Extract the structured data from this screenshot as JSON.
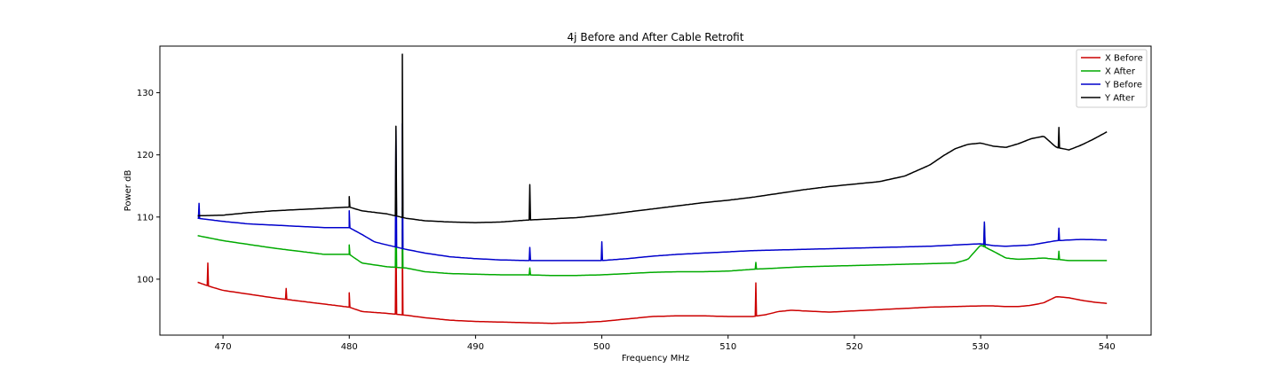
{
  "chart_data": {
    "type": "line",
    "title": "4j Before and After Cable Retrofit",
    "xlabel": "Frequency MHz",
    "ylabel": "Power dB",
    "xlim": [
      465,
      543.5
    ],
    "ylim": [
      91,
      137.5
    ],
    "xticks": [
      470,
      480,
      490,
      500,
      510,
      520,
      530,
      540
    ],
    "yticks": [
      100,
      110,
      120,
      130
    ],
    "grid": false,
    "legend_position": "top-right",
    "series": [
      {
        "name": "X Before",
        "color": "#cc0000",
        "x": [
          468,
          469,
          470,
          472,
          474,
          476,
          478,
          480,
          481,
          483,
          484.5,
          486,
          488,
          490,
          492,
          494,
          496,
          498,
          500,
          502,
          504,
          506,
          508,
          510,
          512,
          513,
          514,
          515,
          516,
          517,
          518,
          520,
          522,
          524,
          526,
          528,
          530,
          531,
          532,
          533,
          534,
          535,
          536,
          537,
          538,
          539,
          540
        ],
        "y": [
          99.5,
          98.8,
          98.2,
          97.6,
          97.0,
          96.5,
          96.0,
          95.5,
          94.8,
          94.5,
          94.2,
          93.8,
          93.4,
          93.2,
          93.1,
          93.0,
          92.9,
          93.0,
          93.2,
          93.6,
          94.0,
          94.1,
          94.1,
          94.0,
          94.0,
          94.3,
          94.8,
          95.0,
          94.9,
          94.8,
          94.7,
          94.9,
          95.1,
          95.3,
          95.5,
          95.6,
          95.7,
          95.7,
          95.6,
          95.6,
          95.8,
          96.2,
          97.2,
          97.0,
          96.6,
          96.3,
          96.1
        ],
        "spikes": [
          {
            "x": 468.8,
            "y": 102.6
          },
          {
            "x": 475.0,
            "y": 98.5
          },
          {
            "x": 480.0,
            "y": 97.8
          },
          {
            "x": 483.7,
            "y": 107.5
          },
          {
            "x": 484.2,
            "y": 108.0
          },
          {
            "x": 512.2,
            "y": 99.4
          }
        ]
      },
      {
        "name": "X After",
        "color": "#00aa00",
        "x": [
          468,
          470,
          472,
          474,
          476,
          478,
          480,
          481,
          483,
          484.5,
          486,
          488,
          490,
          492,
          494,
          496,
          498,
          500,
          502,
          504,
          506,
          508,
          510,
          512,
          514,
          516,
          518,
          520,
          522,
          524,
          526,
          528,
          529,
          530,
          531,
          532,
          533,
          534,
          535,
          536,
          537,
          538,
          539,
          540
        ],
        "y": [
          107.0,
          106.2,
          105.6,
          105.0,
          104.5,
          104.0,
          104.0,
          102.6,
          102.0,
          101.8,
          101.2,
          100.9,
          100.8,
          100.7,
          100.7,
          100.6,
          100.6,
          100.7,
          100.9,
          101.1,
          101.2,
          101.2,
          101.3,
          101.6,
          101.8,
          102.0,
          102.1,
          102.2,
          102.3,
          102.4,
          102.5,
          102.6,
          103.2,
          105.5,
          104.5,
          103.4,
          103.2,
          103.3,
          103.4,
          103.2,
          103.0,
          103.0,
          103.0,
          103.0
        ],
        "spikes": [
          {
            "x": 480.0,
            "y": 105.5
          },
          {
            "x": 483.7,
            "y": 111.0
          },
          {
            "x": 484.2,
            "y": 111.5
          },
          {
            "x": 494.3,
            "y": 101.8
          },
          {
            "x": 512.2,
            "y": 102.7
          },
          {
            "x": 530.3,
            "y": 109.0
          },
          {
            "x": 536.2,
            "y": 104.5
          }
        ]
      },
      {
        "name": "Y Before",
        "color": "#0000cc",
        "x": [
          468,
          470,
          472,
          474,
          476,
          478,
          480,
          481,
          482,
          483,
          484.5,
          486,
          488,
          490,
          492,
          494,
          496,
          498,
          500,
          502,
          504,
          506,
          508,
          510,
          512,
          514,
          516,
          518,
          520,
          522,
          524,
          526,
          528,
          530,
          531,
          532,
          534,
          536,
          538,
          540
        ],
        "y": [
          109.8,
          109.3,
          108.9,
          108.7,
          108.5,
          108.3,
          108.3,
          107.2,
          106.0,
          105.5,
          104.8,
          104.2,
          103.6,
          103.3,
          103.1,
          103.0,
          103.0,
          103.0,
          103.0,
          103.3,
          103.7,
          104.0,
          104.2,
          104.4,
          104.6,
          104.7,
          104.8,
          104.9,
          105.0,
          105.1,
          105.2,
          105.3,
          105.5,
          105.7,
          105.4,
          105.3,
          105.5,
          106.2,
          106.4,
          106.3
        ],
        "spikes": [
          {
            "x": 468.1,
            "y": 112.2
          },
          {
            "x": 480.0,
            "y": 111.0
          },
          {
            "x": 483.7,
            "y": 124.0
          },
          {
            "x": 484.2,
            "y": 125.0
          },
          {
            "x": 494.3,
            "y": 105.1
          },
          {
            "x": 500.0,
            "y": 106.0
          },
          {
            "x": 530.3,
            "y": 109.2
          },
          {
            "x": 536.2,
            "y": 108.2
          }
        ]
      },
      {
        "name": "Y After",
        "color": "#000000",
        "x": [
          468,
          470,
          472,
          474,
          476,
          478,
          480,
          481,
          483,
          484.5,
          486,
          488,
          490,
          492,
          494,
          496,
          498,
          500,
          502,
          504,
          506,
          508,
          510,
          512,
          514,
          516,
          518,
          520,
          522,
          524,
          526,
          527,
          528,
          529,
          530,
          531,
          532,
          533,
          534,
          535,
          536,
          537,
          538,
          539,
          540
        ],
        "y": [
          110.2,
          110.3,
          110.7,
          111.0,
          111.2,
          111.4,
          111.6,
          111.0,
          110.5,
          109.8,
          109.4,
          109.2,
          109.1,
          109.2,
          109.5,
          109.7,
          109.9,
          110.3,
          110.8,
          111.3,
          111.8,
          112.3,
          112.7,
          113.2,
          113.8,
          114.4,
          114.9,
          115.3,
          115.7,
          116.6,
          118.4,
          119.8,
          121.0,
          121.7,
          121.9,
          121.4,
          121.2,
          121.8,
          122.6,
          123.0,
          121.2,
          120.8,
          121.6,
          122.6,
          123.7
        ],
        "spikes": [
          {
            "x": 480.0,
            "y": 113.3
          },
          {
            "x": 483.7,
            "y": 124.6
          },
          {
            "x": 484.2,
            "y": 136.2
          },
          {
            "x": 494.3,
            "y": 115.2
          },
          {
            "x": 536.2,
            "y": 124.4
          }
        ]
      }
    ]
  }
}
